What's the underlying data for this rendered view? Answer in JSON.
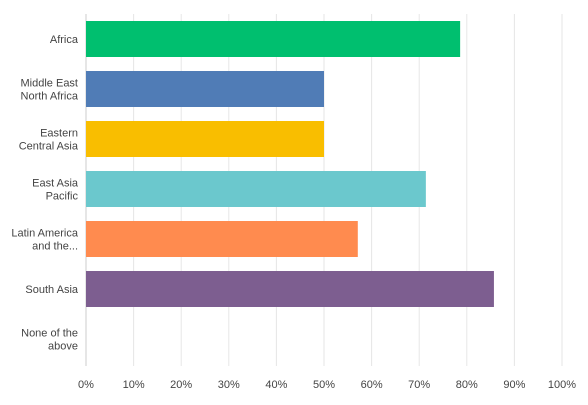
{
  "chart_data": {
    "type": "bar",
    "orientation": "horizontal",
    "title": "",
    "xlabel": "",
    "ylabel": "",
    "xlim": [
      0,
      100
    ],
    "x_ticks": [
      "0%",
      "10%",
      "20%",
      "30%",
      "40%",
      "50%",
      "60%",
      "70%",
      "80%",
      "90%",
      "100%"
    ],
    "grid": true,
    "legend": "none",
    "categories": [
      [
        "Africa"
      ],
      [
        "Middle East",
        "North Africa"
      ],
      [
        "Eastern",
        "Central Asia"
      ],
      [
        "East Asia",
        "Pacific"
      ],
      [
        "Latin America",
        "and the..."
      ],
      [
        "South Asia"
      ],
      [
        "None of the",
        "above"
      ]
    ],
    "values": [
      78.6,
      50.0,
      50.0,
      71.4,
      57.1,
      85.7,
      0
    ],
    "colors": [
      "#00bf6f",
      "#507cb6",
      "#f9be00",
      "#6bc8cd",
      "#ff8b4f",
      "#7d5e90",
      "#d25f90"
    ]
  }
}
